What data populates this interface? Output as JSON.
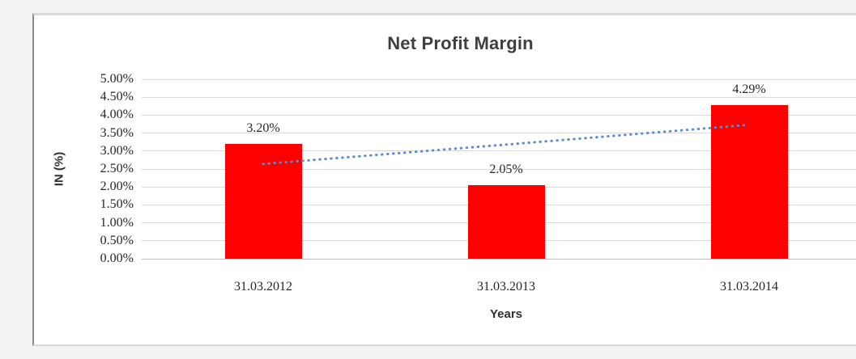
{
  "chart_data": {
    "type": "bar",
    "title": "Net Profit Margin",
    "xlabel": "Years",
    "ylabel": "IN (%)",
    "categories": [
      "31.03.2012",
      "31.03.2013",
      "31.03.2014"
    ],
    "series": [
      {
        "name": "Net Profit Margin",
        "values": [
          3.2,
          2.05,
          4.29
        ]
      }
    ],
    "data_labels": [
      "3.20%",
      "2.05%",
      "4.29%"
    ],
    "ylim": [
      0,
      5
    ],
    "ytick_step": 0.5,
    "ytick_labels": [
      "0.00%",
      "0.50%",
      "1.00%",
      "1.50%",
      "2.00%",
      "2.50%",
      "3.00%",
      "3.50%",
      "4.00%",
      "4.50%",
      "5.00%"
    ],
    "grid": true,
    "legend": "none",
    "trendline": {
      "type": "linear",
      "style": "dotted",
      "fitted_values": [
        2.64,
        3.18,
        3.73
      ]
    },
    "colors": {
      "bar": "#ff0000",
      "trendline": "#5b8bd0",
      "gridline": "#d9d9d9",
      "axis_line": "#bfbfbf",
      "title_text": "#3f3f3f",
      "label_text": "#262626"
    }
  }
}
